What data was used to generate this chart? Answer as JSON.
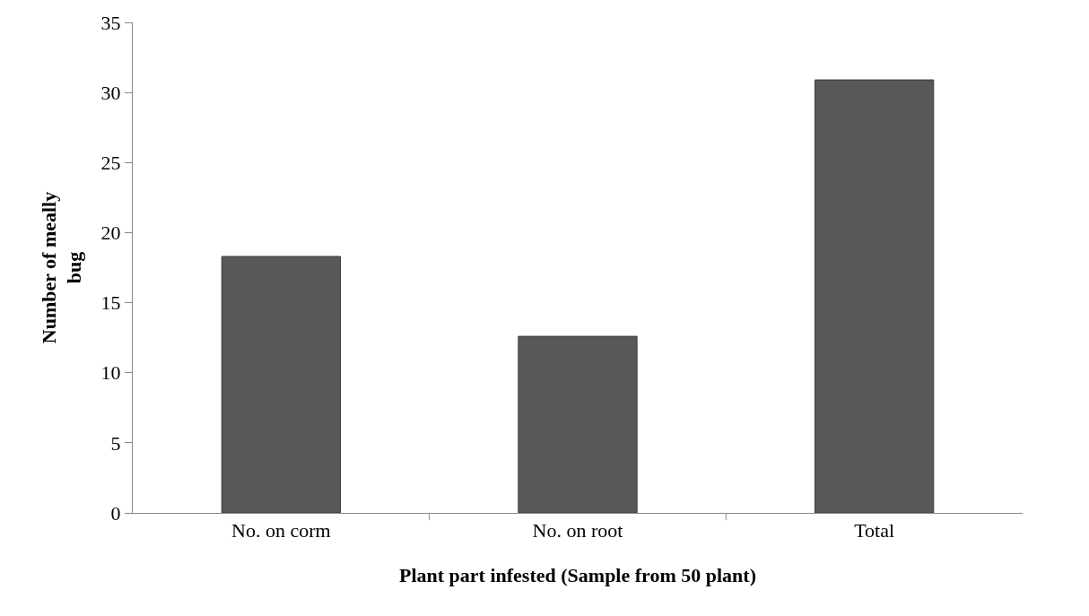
{
  "chart_data": {
    "type": "bar",
    "categories": [
      "No. on corm",
      "No. on root",
      "Total"
    ],
    "values": [
      18.3,
      12.6,
      30.9
    ],
    "color": "#585858",
    "xlabel": "Plant part infested (Sample from 50 plant)",
    "ylabel": "Number of meally\nbug",
    "ylim": [
      0,
      35
    ],
    "yticks": [
      0,
      5,
      10,
      15,
      20,
      25,
      30,
      35
    ],
    "grid": false
  }
}
